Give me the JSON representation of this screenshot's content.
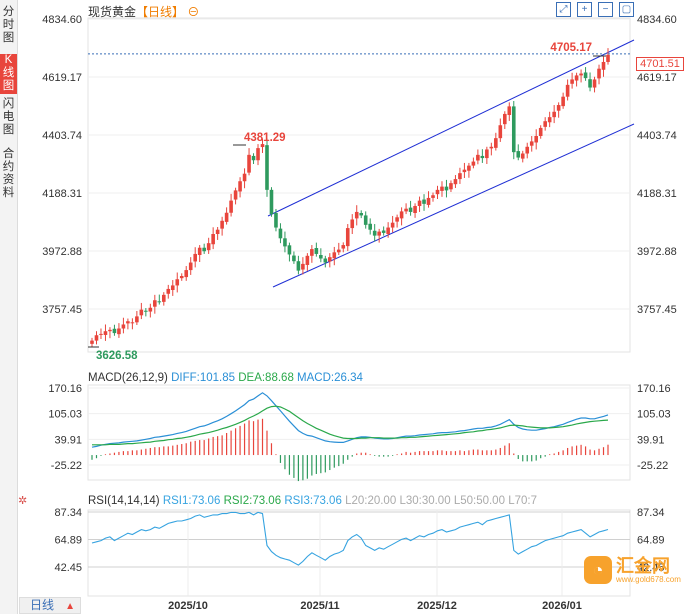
{
  "sidebar": {
    "tabs": [
      {
        "label": "分时图",
        "active": false
      },
      {
        "label": "K线图",
        "active": true
      },
      {
        "label": "闪电图",
        "active": false
      },
      {
        "label": "合约资料",
        "active": false
      }
    ]
  },
  "header": {
    "title_main": "现货黄金",
    "title_period": "【日线】",
    "title_icon": "⊖"
  },
  "controls": [
    "expand-icon",
    "zoom-in-icon",
    "zoom-out-icon",
    "fullscreen-icon"
  ],
  "price_tag": "4701.51",
  "macd": {
    "label": "MACD(26,12,9)",
    "diff": "DIFF:101.85",
    "dea": "DEA:88.68",
    "macd": "MACD:26.34"
  },
  "rsi": {
    "label": "RSI(14,14,14)",
    "rsi1": "RSI1:73.06",
    "rsi2": "RSI2:73.06",
    "rsi3": "RSI3:73.06",
    "l20": "L20:20.00",
    "l30": "L30:30.00",
    "l50": "L50:50.00",
    "l70": "L70:7"
  },
  "bottom_tab": "日线",
  "watermark": {
    "name": "汇金网",
    "url": "www.gold678.com"
  },
  "colors": {
    "up": "#e8453c",
    "down": "#2e9a5e",
    "diff": "#2a8fd6",
    "dea": "#2aa84a",
    "channel": "#1f2fd4",
    "rsi": "#36a3e0"
  },
  "chart_data": {
    "type": "candlestick",
    "title": "现货黄金【日线】",
    "price_axis": [
      4834.6,
      4619.17,
      4403.74,
      4188.31,
      3972.88,
      3757.45
    ],
    "macd_axis": [
      170.16,
      105.03,
      39.91,
      -25.22
    ],
    "rsi_axis": [
      87.34,
      64.89,
      42.45
    ],
    "x_labels": [
      "2025/10",
      "2025/11",
      "2025/12",
      "2026/01"
    ],
    "annotations": {
      "high": "4381.29",
      "low": "3626.58",
      "recent_high": "4705.17"
    },
    "close_series": [
      3640,
      3660,
      3665,
      3675,
      3680,
      3668,
      3685,
      3700,
      3712,
      3708,
      3730,
      3755,
      3748,
      3762,
      3790,
      3784,
      3810,
      3832,
      3845,
      3868,
      3880,
      3902,
      3930,
      3962,
      3985,
      3972,
      4002,
      4036,
      4052,
      4085,
      4115,
      4160,
      4198,
      4232,
      4260,
      4330,
      4310,
      4355,
      4370,
      4200,
      4110,
      4060,
      4020,
      3990,
      3960,
      3935,
      3900,
      3925,
      3955,
      3980,
      3962,
      3945,
      3930,
      3950,
      3968,
      3978,
      3995,
      4058,
      4090,
      4118,
      4105,
      4070,
      4052,
      4030,
      4045,
      4040,
      4060,
      4078,
      4098,
      4120,
      4130,
      4118,
      4140,
      4160,
      4148,
      4170,
      4180,
      4200,
      4212,
      4198,
      4225,
      4240,
      4262,
      4275,
      4290,
      4305,
      4330,
      4318,
      4350,
      4360,
      4392,
      4440,
      4482,
      4510,
      4340,
      4320,
      4335,
      4360,
      4380,
      4400,
      4430,
      4455,
      4470,
      4490,
      4515,
      4546,
      4590,
      4610,
      4625,
      4632,
      4615,
      4580,
      4610,
      4650,
      4675,
      4701.51
    ],
    "diff_series": [
      20,
      22,
      25,
      27,
      29,
      30,
      31,
      33,
      34,
      35,
      36,
      38,
      40,
      42,
      45,
      46,
      48,
      50,
      52,
      55,
      57,
      60,
      64,
      68,
      72,
      74,
      78,
      83,
      87,
      92,
      98,
      105,
      112,
      120,
      128,
      138,
      142,
      150,
      158,
      150,
      138,
      125,
      112,
      99,
      86,
      74,
      62,
      55,
      50,
      48,
      44,
      40,
      36,
      34,
      33,
      32,
      32,
      36,
      40,
      44,
      46,
      46,
      45,
      43,
      42,
      41,
      41,
      42,
      44,
      46,
      48,
      48,
      49,
      51,
      52,
      53,
      54,
      56,
      57,
      57,
      58,
      59,
      61,
      62,
      64,
      66,
      68,
      68,
      70,
      71,
      74,
      78,
      84,
      90,
      78,
      70,
      66,
      64,
      63,
      63,
      65,
      67,
      70,
      72,
      75,
      78,
      83,
      87,
      91,
      94,
      94,
      92,
      92,
      95,
      98,
      101.85
    ],
    "dea_series": [
      26,
      26,
      26,
      26,
      27,
      27,
      27,
      28,
      29,
      29,
      30,
      31,
      32,
      33,
      35,
      36,
      37,
      39,
      40,
      42,
      43,
      45,
      47,
      50,
      53,
      55,
      57,
      60,
      63,
      67,
      70,
      74,
      78,
      83,
      88,
      94,
      99,
      105,
      112,
      119,
      123,
      124,
      122,
      117,
      111,
      103,
      95,
      87,
      80,
      74,
      68,
      63,
      58,
      53,
      49,
      46,
      43,
      42,
      42,
      42,
      43,
      43,
      44,
      44,
      44,
      43,
      43,
      43,
      43,
      44,
      44,
      45,
      45,
      46,
      47,
      48,
      49,
      50,
      51,
      52,
      53,
      54,
      55,
      57,
      58,
      59,
      61,
      62,
      64,
      65,
      67,
      69,
      72,
      75,
      76,
      75,
      74,
      72,
      71,
      70,
      69,
      69,
      69,
      70,
      71,
      72,
      74,
      76,
      79,
      81,
      83,
      85,
      86,
      87,
      88,
      88.68
    ],
    "rsi_series": [
      62,
      63,
      64,
      66,
      67,
      64,
      66,
      68,
      70,
      69,
      71,
      73,
      72,
      73,
      75,
      74,
      76,
      78,
      79,
      80,
      80,
      81,
      82,
      84,
      85,
      83,
      84,
      85,
      85,
      86,
      86,
      87,
      87,
      86,
      86,
      87,
      85,
      87,
      86,
      60,
      55,
      52,
      50,
      49,
      48,
      46,
      44,
      47,
      51,
      54,
      52,
      50,
      48,
      51,
      53,
      54,
      56,
      64,
      67,
      69,
      66,
      60,
      58,
      56,
      58,
      57,
      59,
      61,
      63,
      65,
      66,
      64,
      66,
      68,
      67,
      69,
      70,
      72,
      73,
      71,
      72,
      73,
      75,
      76,
      77,
      78,
      79,
      77,
      80,
      81,
      82,
      83,
      84,
      85,
      56,
      53,
      55,
      57,
      59,
      60,
      62,
      64,
      65,
      66,
      67,
      68,
      70,
      71,
      72,
      73,
      70,
      67,
      69,
      71,
      72,
      73.06
    ]
  }
}
